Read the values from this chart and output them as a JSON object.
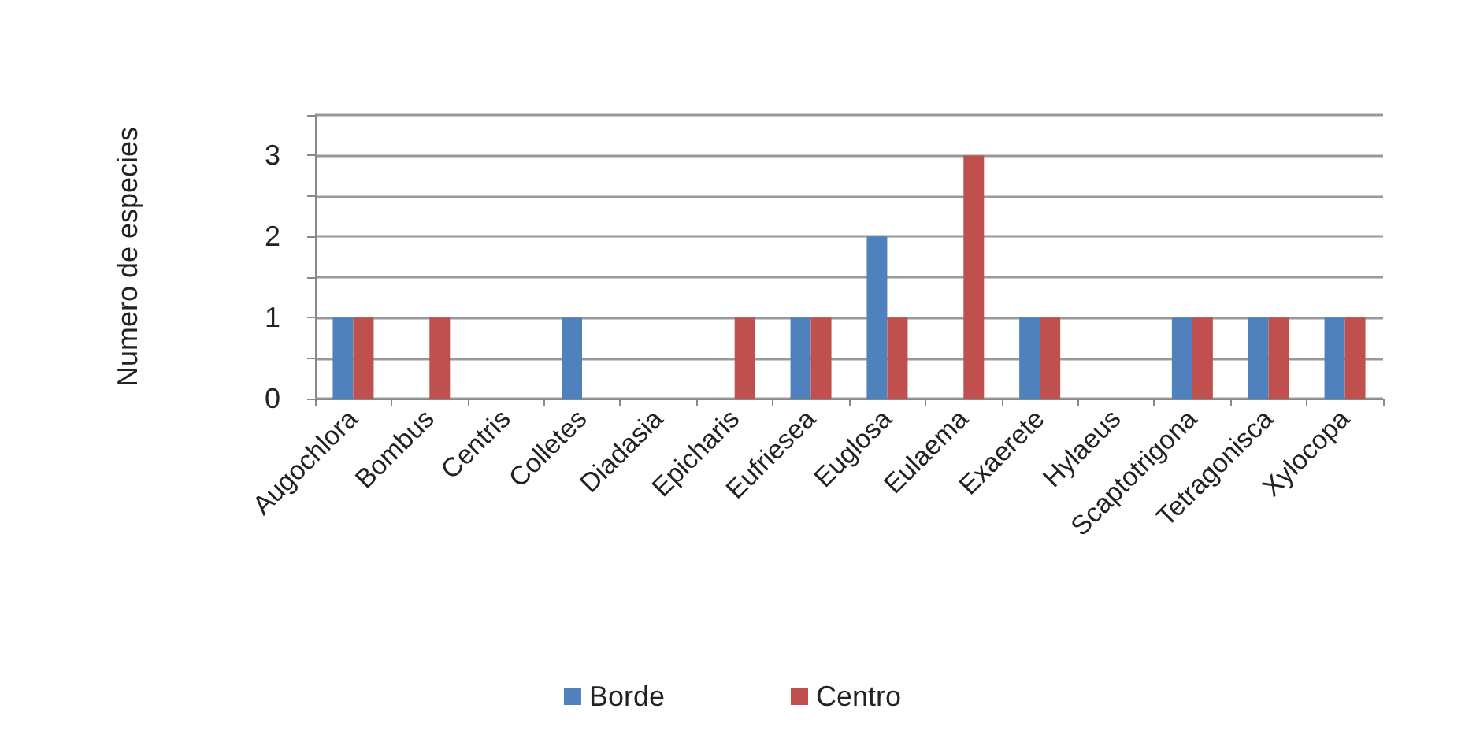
{
  "chart_data": {
    "type": "bar",
    "ylabel": "Numero de especies",
    "categories": [
      "Augochlora",
      "Bombus",
      "Centris",
      "Colletes",
      "Diadasia",
      "Epicharis",
      "Eufriesea",
      "Euglosa",
      "Eulaema",
      "Exaerete",
      "Hylaeus",
      "Scaptotrigona",
      "Tetragonisca",
      "Xylocopa"
    ],
    "series": [
      {
        "name": "Borde",
        "color": "#4f81bd",
        "values": [
          1,
          0,
          0,
          1,
          0,
          0,
          1,
          2,
          0,
          1,
          0,
          1,
          1,
          1
        ]
      },
      {
        "name": "Centro",
        "color": "#c0504d",
        "values": [
          1,
          1,
          0,
          0,
          0,
          1,
          1,
          1,
          3,
          1,
          0,
          1,
          1,
          1
        ]
      }
    ],
    "ylim": [
      0,
      3.5
    ],
    "yticks": [
      0,
      {
        "value": 0.5,
        "label": null
      },
      1,
      {
        "value": 1.5,
        "label": null
      },
      2,
      {
        "value": 2.5,
        "label": null
      },
      3,
      {
        "value": 3.5,
        "label": null
      }
    ],
    "grid": "y",
    "legend": "bottom"
  }
}
